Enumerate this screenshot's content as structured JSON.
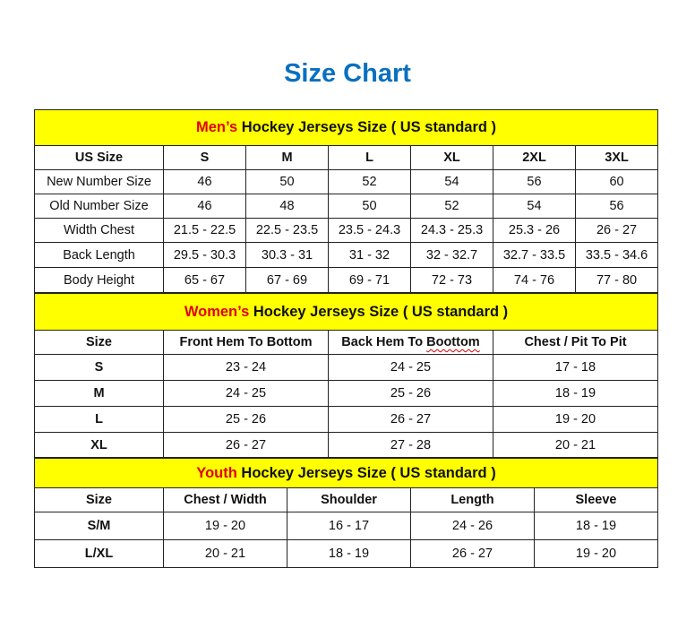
{
  "title": "Size Chart",
  "men": {
    "band_prefix": "Men’s",
    "band_rest": " Hockey Jerseys Size ( US standard )",
    "header": [
      "US Size",
      "S",
      "M",
      "L",
      "XL",
      "2XL",
      "3XL"
    ],
    "rows": [
      [
        "New Number Size",
        "46",
        "50",
        "52",
        "54",
        "56",
        "60"
      ],
      [
        "Old Number Size",
        "46",
        "48",
        "50",
        "52",
        "54",
        "56"
      ],
      [
        "Width Chest",
        "21.5 - 22.5",
        "22.5 - 23.5",
        "23.5 - 24.3",
        "24.3 - 25.3",
        "25.3 - 26",
        "26 - 27"
      ],
      [
        "Back Length",
        "29.5 - 30.3",
        "30.3 - 31",
        "31 - 32",
        "32 - 32.7",
        "32.7 - 33.5",
        "33.5 - 34.6"
      ],
      [
        "Body Height",
        "65 - 67",
        "67 - 69",
        "69 - 71",
        "72 - 73",
        "74 - 76",
        "77 - 80"
      ]
    ]
  },
  "women": {
    "band_prefix": "Women’s",
    "band_rest": " Hockey Jerseys Size ( US standard )",
    "header": [
      "Size",
      "Front Hem To Bottom",
      "Back Hem To Boottom",
      "Chest / Pit To Pit"
    ],
    "rows": [
      [
        "S",
        "23 - 24",
        "24 - 25",
        "17 - 18"
      ],
      [
        "M",
        "24 - 25",
        "25 - 26",
        "18 - 19"
      ],
      [
        "L",
        "25 - 26",
        "26 - 27",
        "19 - 20"
      ],
      [
        "XL",
        "26 - 27",
        "27 - 28",
        "20 - 21"
      ]
    ]
  },
  "youth": {
    "band_prefix": "Youth",
    "band_rest": " Hockey Jerseys Size ( US standard )",
    "header": [
      "Size",
      "Chest / Width",
      "Shoulder",
      "Length",
      "Sleeve"
    ],
    "rows": [
      [
        "S/M",
        "19 - 20",
        "16 - 17",
        "24 - 26",
        "18 - 19"
      ],
      [
        "L/XL",
        "20 - 21",
        "18 - 19",
        "26 - 27",
        "19 - 20"
      ]
    ]
  },
  "colors": {
    "title": "#0A70C0",
    "band": "#FFFF00",
    "accent_red": "#E00000"
  }
}
